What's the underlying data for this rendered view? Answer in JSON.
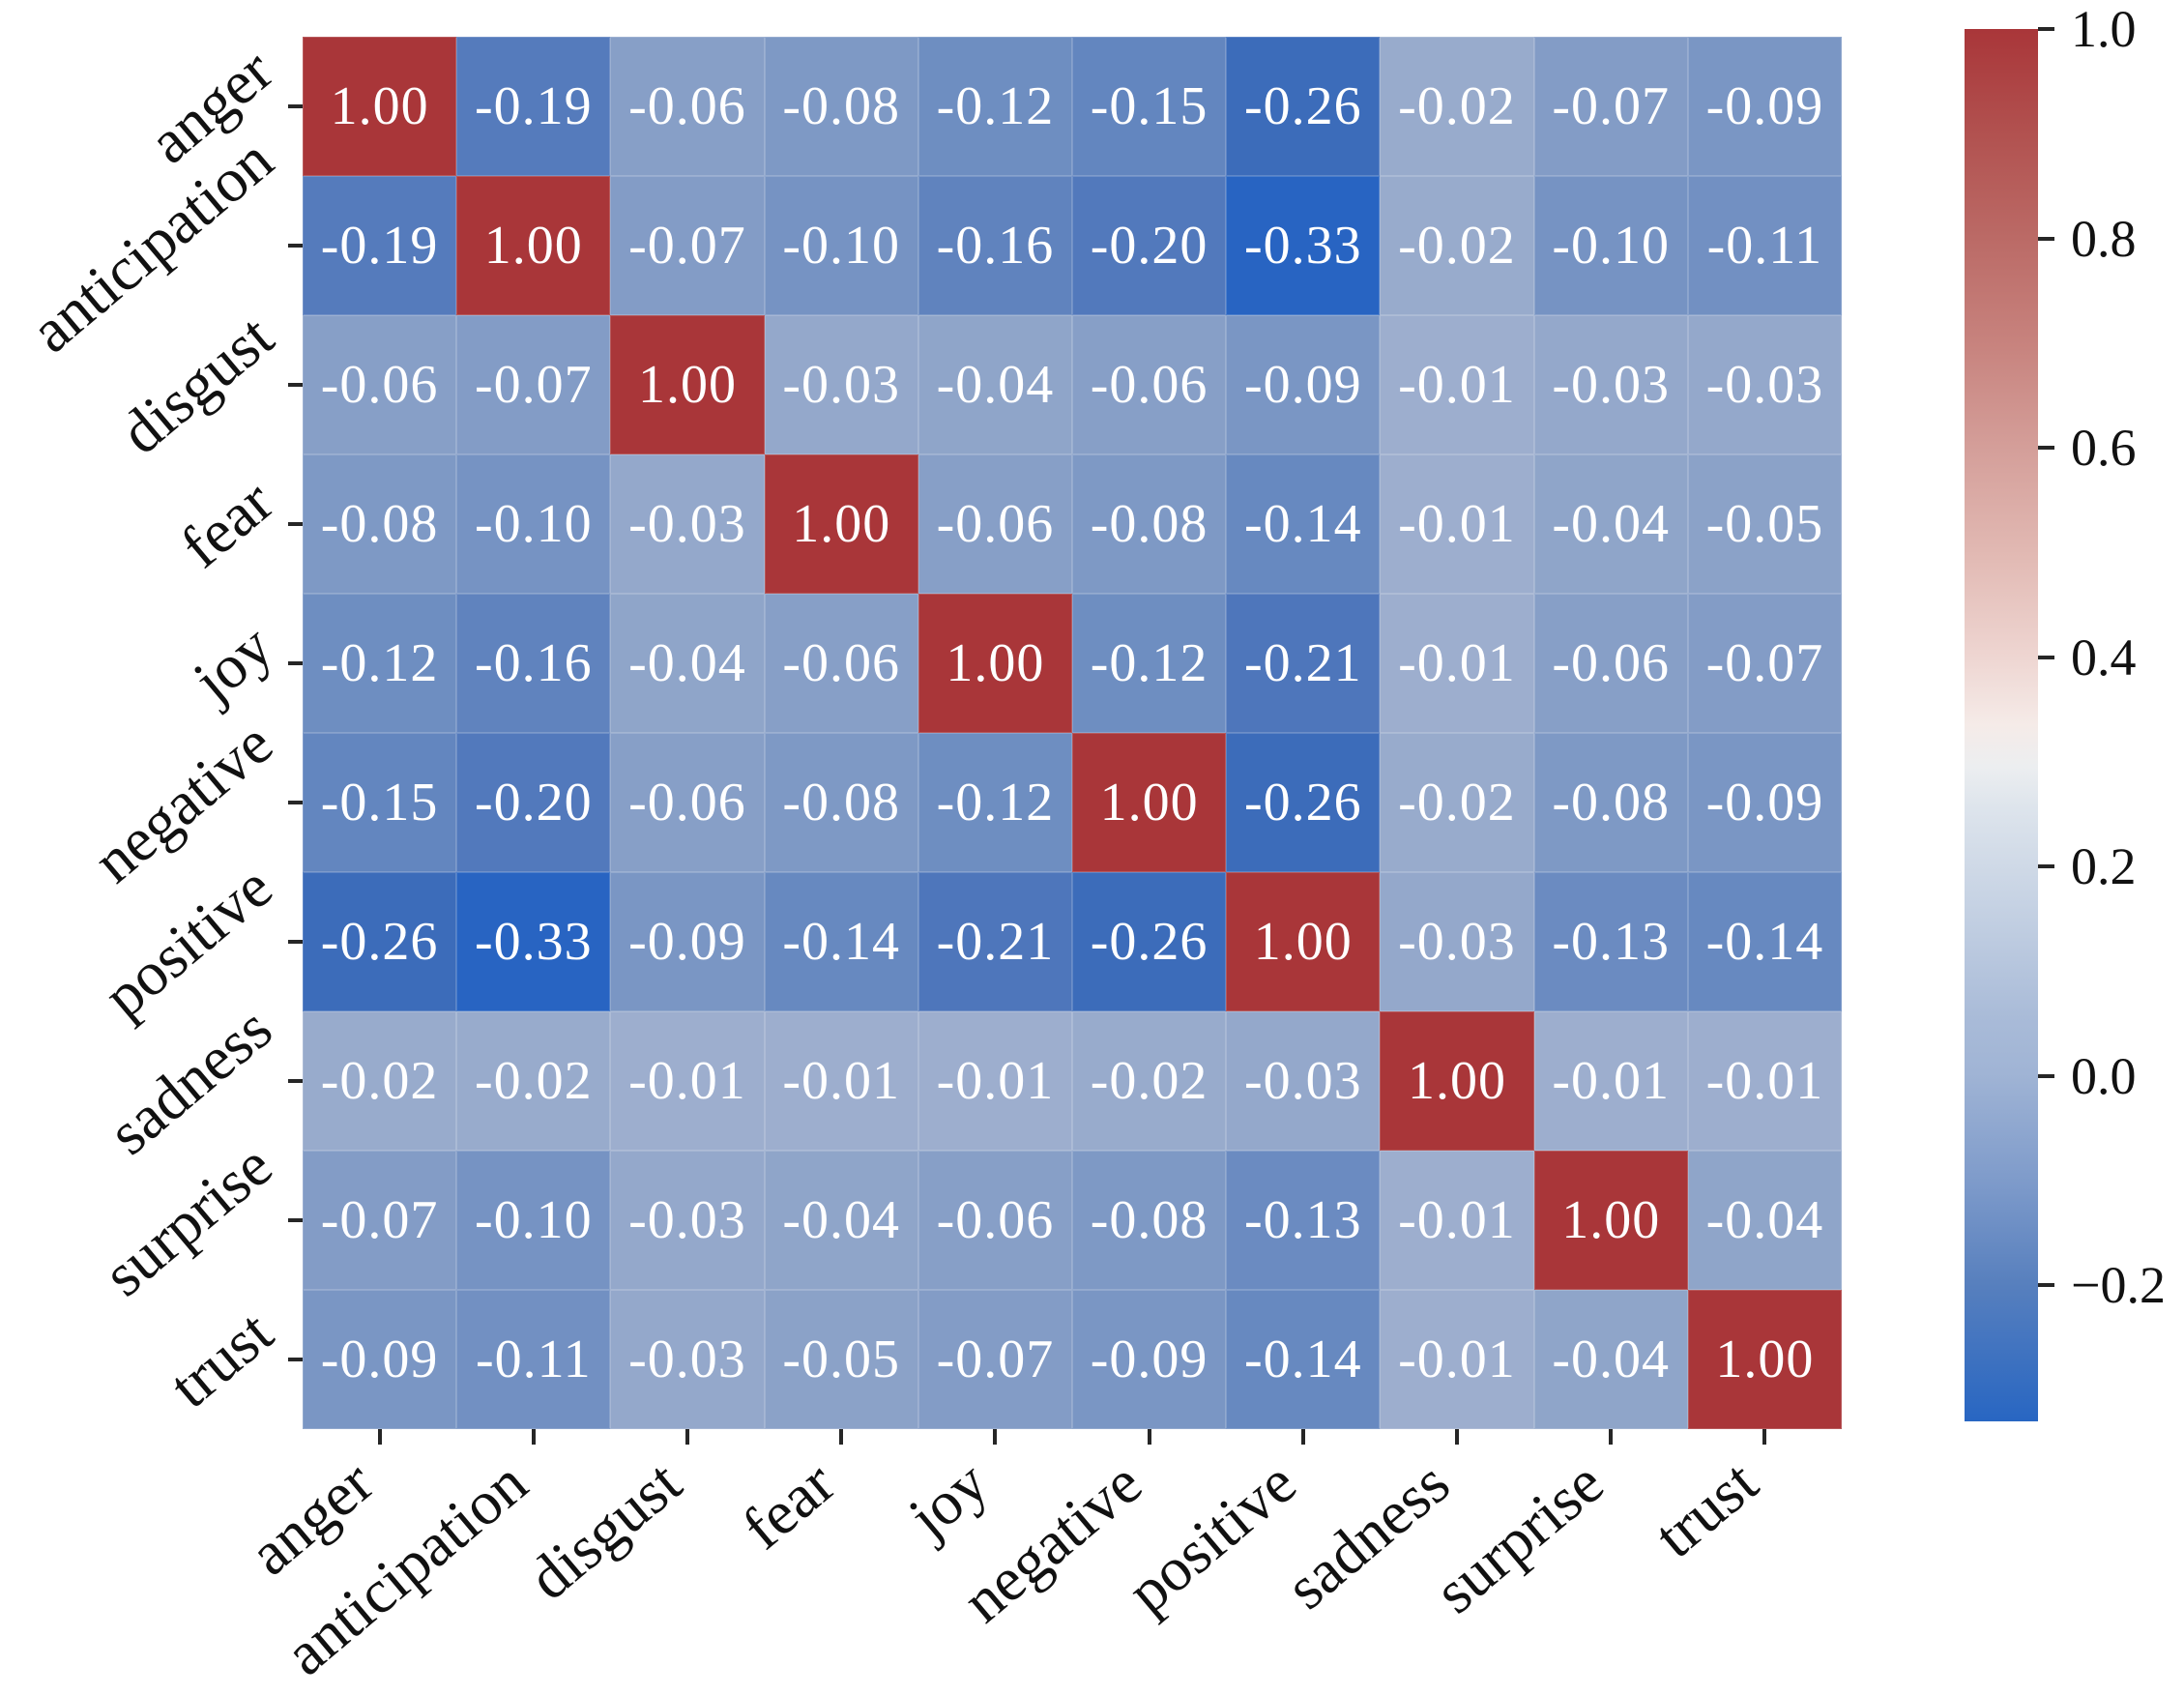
{
  "chart_data": {
    "type": "heatmap",
    "title": "",
    "categories": [
      "anger",
      "anticipation",
      "disgust",
      "fear",
      "joy",
      "negative",
      "positive",
      "sadness",
      "surprise",
      "trust"
    ],
    "matrix": [
      [
        1.0,
        -0.19,
        -0.06,
        -0.08,
        -0.12,
        -0.15,
        -0.26,
        -0.02,
        -0.07,
        -0.09
      ],
      [
        -0.19,
        1.0,
        -0.07,
        -0.1,
        -0.16,
        -0.2,
        -0.33,
        -0.02,
        -0.1,
        -0.11
      ],
      [
        -0.06,
        -0.07,
        1.0,
        -0.03,
        -0.04,
        -0.06,
        -0.09,
        -0.01,
        -0.03,
        -0.03
      ],
      [
        -0.08,
        -0.1,
        -0.03,
        1.0,
        -0.06,
        -0.08,
        -0.14,
        -0.01,
        -0.04,
        -0.05
      ],
      [
        -0.12,
        -0.16,
        -0.04,
        -0.06,
        1.0,
        -0.12,
        -0.21,
        -0.01,
        -0.06,
        -0.07
      ],
      [
        -0.15,
        -0.2,
        -0.06,
        -0.08,
        -0.12,
        1.0,
        -0.26,
        -0.02,
        -0.08,
        -0.09
      ],
      [
        -0.26,
        -0.33,
        -0.09,
        -0.14,
        -0.21,
        -0.26,
        1.0,
        -0.03,
        -0.13,
        -0.14
      ],
      [
        -0.02,
        -0.02,
        -0.01,
        -0.01,
        -0.01,
        -0.02,
        -0.03,
        1.0,
        -0.01,
        -0.01
      ],
      [
        -0.07,
        -0.1,
        -0.03,
        -0.04,
        -0.06,
        -0.08,
        -0.13,
        -0.01,
        1.0,
        -0.04
      ],
      [
        -0.09,
        -0.11,
        -0.03,
        -0.05,
        -0.07,
        -0.09,
        -0.14,
        -0.01,
        -0.04,
        1.0
      ]
    ],
    "value_decimals": 2,
    "xlabel": "",
    "ylabel": "",
    "grid": false,
    "legend_position": "right-colorbar",
    "colorbar": {
      "vmax": 1.0,
      "vmin": -0.33,
      "tick_values": [
        1.0,
        0.8,
        0.6,
        0.4,
        0.2,
        0.0,
        -0.2
      ],
      "tick_labels": [
        "1.0",
        "0.8",
        "0.6",
        "0.4",
        "0.2",
        "0.0",
        "−0.2"
      ],
      "gradient_stops": [
        [
          0.0,
          "#a93639"
        ],
        [
          0.08,
          "#b25351"
        ],
        [
          0.15,
          "#bb6a66"
        ],
        [
          0.23,
          "#c8847f"
        ],
        [
          0.3,
          "#d49e99"
        ],
        [
          0.38,
          "#e2bab4"
        ],
        [
          0.45,
          "#eed5d1"
        ],
        [
          0.5,
          "#f5ebe8"
        ],
        [
          0.53,
          "#eceef0"
        ],
        [
          0.56,
          "#dde4ec"
        ],
        [
          0.64,
          "#c2cfe2"
        ],
        [
          0.71,
          "#a9bbd8"
        ],
        [
          0.75,
          "#a0b4d5"
        ],
        [
          0.83,
          "#7d9aca"
        ],
        [
          0.9,
          "#5880be"
        ],
        [
          1.0,
          "#2866c2"
        ]
      ]
    },
    "colors": {
      "diagonal_red": "#a93639",
      "strongest_blue": "#2864c2",
      "cell_text": "#ffffff",
      "axis_text": "#111111",
      "tick_mark": "#262626",
      "cell_color_anchors": [
        [
          -0.33,
          [
            40,
            100,
            194
          ]
        ],
        [
          -0.26,
          [
            60,
            108,
            186
          ]
        ],
        [
          -0.21,
          [
            78,
            118,
            187
          ]
        ],
        [
          -0.15,
          [
            99,
            134,
            191
          ]
        ],
        [
          -0.1,
          [
            118,
            147,
            195
          ]
        ],
        [
          -0.05,
          [
            139,
            162,
            200
          ]
        ],
        [
          -0.02,
          [
            152,
            171,
            204
          ]
        ],
        [
          0.0,
          [
            161,
            177,
            208
          ]
        ]
      ]
    }
  }
}
